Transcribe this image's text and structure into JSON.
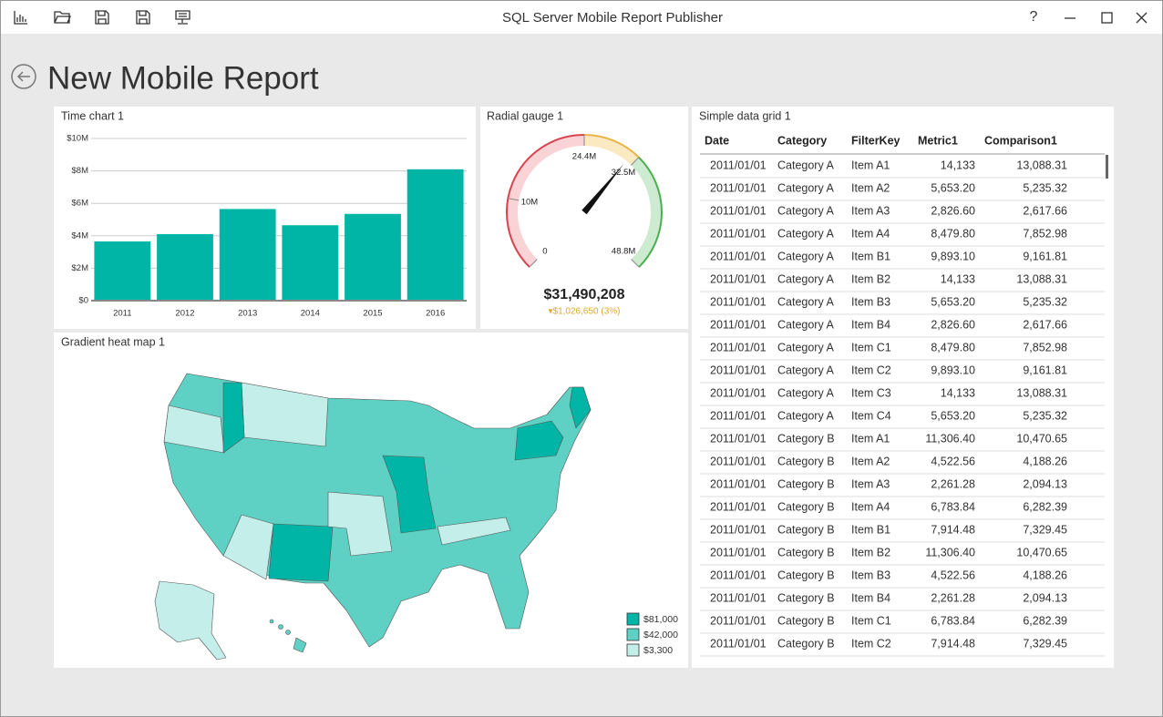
{
  "window": {
    "title": "SQL Server Mobile Report Publisher",
    "help": "?"
  },
  "report": {
    "title": "New Mobile Report"
  },
  "time_chart": {
    "type": "bar",
    "title": "Time chart 1",
    "categories": [
      "2011",
      "2012",
      "2013",
      "2014",
      "2015",
      "2016"
    ],
    "values": [
      3650000,
      4100000,
      5650000,
      4650000,
      5350000,
      8100000
    ],
    "color": "#00b5a5",
    "ylim": [
      0,
      10000000
    ],
    "yticks": [
      {
        "value": 0,
        "label": "$0"
      },
      {
        "value": 2000000,
        "label": "$2M"
      },
      {
        "value": 4000000,
        "label": "$4M"
      },
      {
        "value": 6000000,
        "label": "$6M"
      },
      {
        "value": 8000000,
        "label": "$8M"
      },
      {
        "value": 10000000,
        "label": "$10M"
      }
    ],
    "grid": true
  },
  "gauge": {
    "type": "gauge",
    "title": "Radial gauge 1",
    "value": 31490208,
    "value_label": "$31,490,208",
    "delta_label": "▾$1,026,650 (3%)",
    "range": [
      0,
      48800000
    ],
    "ticks": [
      {
        "value": 0,
        "label": "0"
      },
      {
        "value": 10000000,
        "label": "10M"
      },
      {
        "value": 24400000,
        "label": "24.4M"
      },
      {
        "value": 32500000,
        "label": "32.5M"
      },
      {
        "value": 48800000,
        "label": "48.8M"
      }
    ],
    "zones": [
      {
        "from": 0,
        "to": 24400000,
        "color": "#d9434e",
        "fill": "#f9d3d6"
      },
      {
        "from": 24400000,
        "to": 32500000,
        "color": "#e8b54a",
        "fill": "#fbe9c2"
      },
      {
        "from": 32500000,
        "to": 48800000,
        "color": "#4caf50",
        "fill": "#cdebd0"
      }
    ]
  },
  "heat_map": {
    "title": "Gradient heat map 1",
    "legend": [
      {
        "label": "$81,000",
        "color": "#00b5a5"
      },
      {
        "label": "$42,000",
        "color": "#5ed1c4"
      },
      {
        "label": "$3,300",
        "color": "#c4eeea"
      }
    ]
  },
  "grid": {
    "title": "Simple data grid 1",
    "columns": [
      "Date",
      "Category",
      "FilterKey",
      "Metric1",
      "Comparison1"
    ],
    "rows": [
      [
        "2011/01/01",
        "Category A",
        "Item A1",
        "14,133",
        "13,088.31"
      ],
      [
        "2011/01/01",
        "Category A",
        "Item A2",
        "5,653.20",
        "5,235.32"
      ],
      [
        "2011/01/01",
        "Category A",
        "Item A3",
        "2,826.60",
        "2,617.66"
      ],
      [
        "2011/01/01",
        "Category A",
        "Item A4",
        "8,479.80",
        "7,852.98"
      ],
      [
        "2011/01/01",
        "Category A",
        "Item B1",
        "9,893.10",
        "9,161.81"
      ],
      [
        "2011/01/01",
        "Category A",
        "Item B2",
        "14,133",
        "13,088.31"
      ],
      [
        "2011/01/01",
        "Category A",
        "Item B3",
        "5,653.20",
        "5,235.32"
      ],
      [
        "2011/01/01",
        "Category A",
        "Item B4",
        "2,826.60",
        "2,617.66"
      ],
      [
        "2011/01/01",
        "Category A",
        "Item C1",
        "8,479.80",
        "7,852.98"
      ],
      [
        "2011/01/01",
        "Category A",
        "Item C2",
        "9,893.10",
        "9,161.81"
      ],
      [
        "2011/01/01",
        "Category A",
        "Item C3",
        "14,133",
        "13,088.31"
      ],
      [
        "2011/01/01",
        "Category A",
        "Item C4",
        "5,653.20",
        "5,235.32"
      ],
      [
        "2011/01/01",
        "Category B",
        "Item A1",
        "11,306.40",
        "10,470.65"
      ],
      [
        "2011/01/01",
        "Category B",
        "Item A2",
        "4,522.56",
        "4,188.26"
      ],
      [
        "2011/01/01",
        "Category B",
        "Item A3",
        "2,261.28",
        "2,094.13"
      ],
      [
        "2011/01/01",
        "Category B",
        "Item A4",
        "6,783.84",
        "6,282.39"
      ],
      [
        "2011/01/01",
        "Category B",
        "Item B1",
        "7,914.48",
        "7,329.45"
      ],
      [
        "2011/01/01",
        "Category B",
        "Item B2",
        "11,306.40",
        "10,470.65"
      ],
      [
        "2011/01/01",
        "Category B",
        "Item B3",
        "4,522.56",
        "4,188.26"
      ],
      [
        "2011/01/01",
        "Category B",
        "Item B4",
        "2,261.28",
        "2,094.13"
      ],
      [
        "2011/01/01",
        "Category B",
        "Item C1",
        "6,783.84",
        "6,282.39"
      ],
      [
        "2011/01/01",
        "Category B",
        "Item C2",
        "7,914.48",
        "7,329.45"
      ]
    ]
  }
}
